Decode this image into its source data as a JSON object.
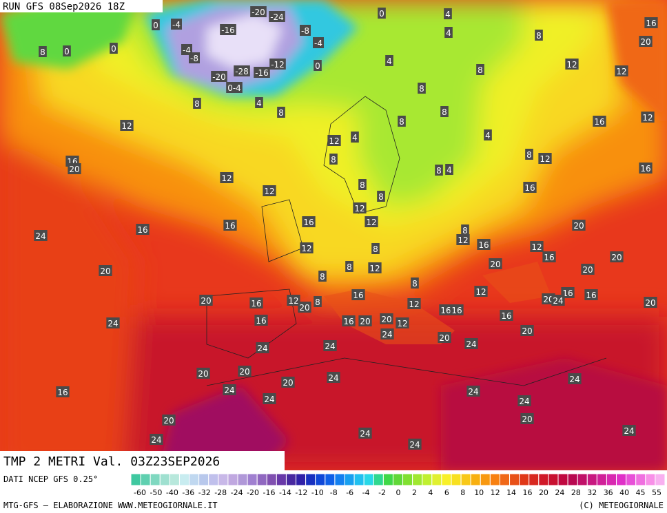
{
  "header": {
    "run": "RUN GFS 08Sep2026 18Z"
  },
  "map": {
    "labels": [
      "-20",
      "-24",
      "-16",
      "-8",
      "-4",
      "-4",
      "-8",
      "-12",
      "-20",
      "-28",
      "-16",
      "0-4",
      "0",
      "0",
      "0",
      "-4",
      "0",
      "0",
      "8",
      "4",
      "4",
      "8",
      "4",
      "8",
      "12",
      "12",
      "20",
      "16",
      "8",
      "4",
      "8",
      "8",
      "8",
      "8",
      "12",
      "12",
      "4",
      "4",
      "16",
      "12",
      "16",
      "20",
      "12",
      "8",
      "8",
      "4",
      "8",
      "12",
      "16",
      "16",
      "12",
      "8",
      "8",
      "12",
      "12",
      "16",
      "16",
      "16",
      "24",
      "8",
      "12",
      "16",
      "20",
      "12",
      "8",
      "8",
      "12",
      "20",
      "12",
      "16",
      "20",
      "20",
      "20",
      "8",
      "8",
      "12",
      "16",
      "20",
      "16",
      "12",
      "20",
      "8",
      "12",
      "16",
      "16",
      "16",
      "16",
      "16",
      "20",
      "24",
      "20",
      "16",
      "16",
      "20",
      "20",
      "12",
      "24",
      "20",
      "24",
      "24",
      "24",
      "20",
      "24",
      "20",
      "20",
      "24",
      "20",
      "24",
      "24",
      "16",
      "24",
      "24",
      "24",
      "20",
      "20",
      "24",
      "24",
      "24",
      "24",
      "24"
    ]
  },
  "caption": {
    "title": "TMP 2 METRI Val. 03Z23SEP2026",
    "source": "DATI NCEP GFS 0.25°",
    "footer_left": "MTG-GFS — ELABORAZIONE WWW.METEOGIORNALE.IT",
    "footer_right": "(C) METEOGIORNALE"
  },
  "scale": {
    "labels": [
      "-60",
      "-50",
      "-40",
      "-36",
      "-32",
      "-28",
      "-24",
      "-20",
      "-16",
      "-14",
      "-12",
      "-10",
      "-8",
      "-6",
      "-4",
      "-2",
      "0",
      "2",
      "4",
      "6",
      "8",
      "10",
      "12",
      "14",
      "16",
      "20",
      "24",
      "28",
      "32",
      "36",
      "40",
      "45",
      "55"
    ],
    "colors": [
      "#3fc8a0",
      "#5fd0b0",
      "#7fd8c0",
      "#9fe0d0",
      "#b8e8dc",
      "#c8ecf0",
      "#c0d8f0",
      "#b8c8ec",
      "#c0c0ec",
      "#c8b8e8",
      "#c0a8e0",
      "#b098d8",
      "#a080d0",
      "#9068c0",
      "#8050b0",
      "#6838a8",
      "#4828a0",
      "#3020a8",
      "#1830c0",
      "#1048d8",
      "#1060e8",
      "#1480f0",
      "#18a0f0",
      "#20c0f0",
      "#28d8e8",
      "#30d890",
      "#40d848",
      "#60d838",
      "#80e030",
      "#a0e830",
      "#c0f030",
      "#e0f030",
      "#f8f028",
      "#f8e020",
      "#f8c818",
      "#f8b010",
      "#f89810",
      "#f88010",
      "#f06818",
      "#e85018",
      "#e03818",
      "#d82820",
      "#d01828",
      "#c81030",
      "#c00840",
      "#b80850",
      "#c01068",
      "#c81880",
      "#d02098",
      "#d828b0",
      "#e030c8",
      "#e850d8",
      "#f070e0",
      "#f890e8",
      "#f8b0f0"
    ]
  }
}
